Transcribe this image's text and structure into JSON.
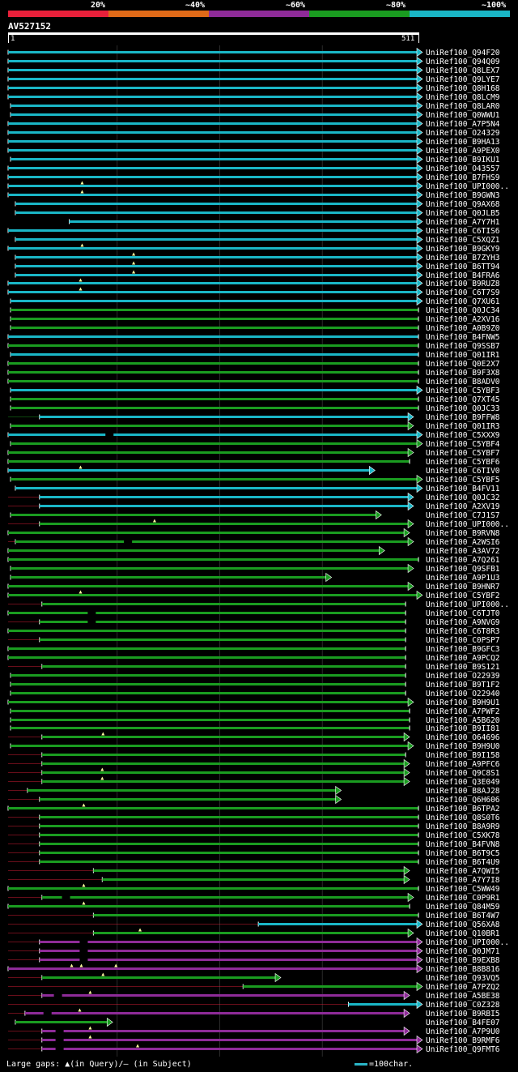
{
  "legend": {
    "labels": [
      "20%",
      "~40%",
      "~60%",
      "~80%",
      "~100%"
    ],
    "colors": [
      "#e8203a",
      "#e06a18",
      "#8e2b98",
      "#1a9c20",
      "#1ab6c6"
    ]
  },
  "query": {
    "name": "AV527152",
    "start": "1",
    "end": "511",
    "length": 511
  },
  "hits": [
    {
      "name": "UniRef100_Q94F20",
      "s": 1,
      "e": 511,
      "c": 4,
      "a": 1
    },
    {
      "name": "UniRef100_Q94Q09",
      "s": 1,
      "e": 511,
      "c": 4,
      "a": 1
    },
    {
      "name": "UniRef100_Q8LEX7",
      "s": 1,
      "e": 511,
      "c": 4,
      "a": 1
    },
    {
      "name": "UniRef100_Q9LYE7",
      "s": 1,
      "e": 511,
      "c": 4,
      "a": 1
    },
    {
      "name": "UniRef100_Q8H168",
      "s": 1,
      "e": 511,
      "c": 4,
      "a": 1
    },
    {
      "name": "UniRef100_Q8LCM9",
      "s": 1,
      "e": 511,
      "c": 4,
      "a": 1
    },
    {
      "name": "UniRef100_Q8LAR0",
      "s": 4,
      "e": 511,
      "c": 4,
      "a": 1
    },
    {
      "name": "UniRef100_Q0WWU1",
      "s": 4,
      "e": 511,
      "c": 4,
      "a": 1
    },
    {
      "name": "UniRef100_A7P5N4",
      "s": 1,
      "e": 511,
      "c": 4,
      "a": 1
    },
    {
      "name": "UniRef100_O24329",
      "s": 1,
      "e": 511,
      "c": 4,
      "a": 1
    },
    {
      "name": "UniRef100_B9HA13",
      "s": 1,
      "e": 511,
      "c": 4,
      "a": 1
    },
    {
      "name": "UniRef100_A9PEX0",
      "s": 1,
      "e": 511,
      "c": 4,
      "a": 1
    },
    {
      "name": "UniRef100_B9IKU1",
      "s": 4,
      "e": 511,
      "c": 4,
      "a": 1
    },
    {
      "name": "UniRef100_O43557",
      "s": 1,
      "e": 511,
      "c": 4,
      "a": 1
    },
    {
      "name": "UniRef100_B7FHS9",
      "s": 1,
      "e": 511,
      "c": 4,
      "a": 1
    },
    {
      "name": "UniRef100_UPI000..",
      "s": 1,
      "e": 511,
      "c": 4,
      "a": 1,
      "gq": [
        93
      ]
    },
    {
      "name": "UniRef100_B9GWN3",
      "s": 1,
      "e": 511,
      "c": 4,
      "a": 1,
      "gq": [
        93
      ]
    },
    {
      "name": "UniRef100_Q9AX68",
      "s": 10,
      "e": 511,
      "c": 4,
      "a": 1
    },
    {
      "name": "UniRef100_Q0JLB5",
      "s": 10,
      "e": 511,
      "c": 4,
      "a": 1
    },
    {
      "name": "UniRef100_A7Y7H1",
      "s": 77,
      "e": 511,
      "c": 4,
      "a": 1
    },
    {
      "name": "UniRef100_C6TIS6",
      "s": 1,
      "e": 511,
      "c": 4,
      "a": 1
    },
    {
      "name": "UniRef100_C5XQZ1",
      "s": 10,
      "e": 511,
      "c": 4,
      "a": 1
    },
    {
      "name": "UniRef100_B9GKY9",
      "s": 1,
      "e": 511,
      "c": 4,
      "a": 1,
      "gq": [
        93
      ]
    },
    {
      "name": "UniRef100_B7ZYH3",
      "s": 10,
      "e": 511,
      "c": 4,
      "a": 1,
      "gq": [
        157
      ]
    },
    {
      "name": "UniRef100_B6TT94",
      "s": 10,
      "e": 511,
      "c": 4,
      "a": 1,
      "gq": [
        157
      ]
    },
    {
      "name": "UniRef100_B4FRA6",
      "s": 10,
      "e": 511,
      "c": 4,
      "a": 1,
      "gq": [
        157
      ]
    },
    {
      "name": "UniRef100_B9RUZ8",
      "s": 1,
      "e": 511,
      "c": 4,
      "a": 1,
      "gq": [
        91
      ]
    },
    {
      "name": "UniRef100_C6T7S9",
      "s": 1,
      "e": 511,
      "c": 4,
      "a": 1,
      "gq": [
        91
      ]
    },
    {
      "name": "UniRef100_Q7XU61",
      "s": 4,
      "e": 511,
      "c": 4,
      "a": 1
    },
    {
      "name": "UniRef100_Q0JC34",
      "s": 4,
      "e": 511,
      "c": 3,
      "a": 0
    },
    {
      "name": "UniRef100_A2XV16",
      "s": 4,
      "e": 511,
      "c": 3,
      "a": 0
    },
    {
      "name": "UniRef100_A0B9Z0",
      "s": 4,
      "e": 511,
      "c": 3,
      "a": 0
    },
    {
      "name": "UniRef100_B4FNW5",
      "s": 1,
      "e": 511,
      "c": 4,
      "a": 0
    },
    {
      "name": "UniRef100_Q9SSB7",
      "s": 1,
      "e": 511,
      "c": 3,
      "a": 0
    },
    {
      "name": "UniRef100_Q01IR1",
      "s": 4,
      "e": 511,
      "c": 4,
      "a": 0
    },
    {
      "name": "UniRef100_Q0E2X7",
      "s": 1,
      "e": 511,
      "c": 3,
      "a": 0
    },
    {
      "name": "UniRef100_B9F3X8",
      "s": 1,
      "e": 511,
      "c": 3,
      "a": 0
    },
    {
      "name": "UniRef100_B8ADV0",
      "s": 1,
      "e": 511,
      "c": 3,
      "a": 0
    },
    {
      "name": "UniRef100_C5YBF3",
      "s": 4,
      "e": 511,
      "c": 4,
      "a": 1
    },
    {
      "name": "UniRef100_Q7XT45",
      "s": 4,
      "e": 511,
      "c": 3,
      "a": 0
    },
    {
      "name": "UniRef100_Q0JC33",
      "s": 4,
      "e": 511,
      "c": 3,
      "a": 0
    },
    {
      "name": "UniRef100_B9FFW8",
      "s": 40,
      "e": 500,
      "c": 4,
      "a": 1,
      "ps": 1,
      "pc": 3
    },
    {
      "name": "UniRef100_Q01IR3",
      "s": 4,
      "e": 500,
      "c": 3,
      "a": 1
    },
    {
      "name": "UniRef100_C5XXX9",
      "s": 1,
      "e": 511,
      "c": 4,
      "a": 1,
      "gs": [
        127
      ]
    },
    {
      "name": "UniRef100_C5YBF4",
      "s": 4,
      "e": 511,
      "c": 3,
      "a": 1
    },
    {
      "name": "UniRef100_C5YBF7",
      "s": 1,
      "e": 500,
      "c": 3,
      "a": 1
    },
    {
      "name": "UniRef100_C5YBF6",
      "s": 1,
      "e": 500,
      "c": 3,
      "a": 0
    },
    {
      "name": "UniRef100_C6TIV0",
      "s": 1,
      "e": 452,
      "c": 4,
      "a": 1,
      "gq": [
        91
      ]
    },
    {
      "name": "UniRef100_C5YBF5",
      "s": 4,
      "e": 511,
      "c": 3,
      "a": 1
    },
    {
      "name": "UniRef100_B4FV11",
      "s": 10,
      "e": 511,
      "c": 4,
      "a": 1
    },
    {
      "name": "UniRef100_Q0JC32",
      "s": 40,
      "e": 500,
      "c": 4,
      "a": 1,
      "ps": 1,
      "pc": 0
    },
    {
      "name": "UniRef100_A2XV19",
      "s": 40,
      "e": 500,
      "c": 4,
      "a": 1,
      "ps": 1,
      "pc": 0
    },
    {
      "name": "UniRef100_C7J1S7",
      "s": 4,
      "e": 460,
      "c": 3,
      "a": 1
    },
    {
      "name": "UniRef100_UPI000..",
      "s": 40,
      "e": 500,
      "c": 3,
      "a": 1,
      "gq": [
        183
      ],
      "ps": 1,
      "pc": 0
    },
    {
      "name": "UniRef100_B9RVN8",
      "s": 1,
      "e": 495,
      "c": 3,
      "a": 1
    },
    {
      "name": "UniRef100_A2WSI6",
      "s": 10,
      "e": 500,
      "c": 3,
      "a": 1,
      "ps": 1,
      "pc": 0,
      "gs": [
        150
      ]
    },
    {
      "name": "UniRef100_A3AV72",
      "s": 1,
      "e": 464,
      "c": 3,
      "a": 1
    },
    {
      "name": "UniRef100_A7Q261",
      "s": 1,
      "e": 511,
      "c": 3,
      "a": 0
    },
    {
      "name": "UniRef100_Q9SFB1",
      "s": 4,
      "e": 500,
      "c": 3,
      "a": 1
    },
    {
      "name": "UniRef100_A9P1U3",
      "s": 4,
      "e": 398,
      "c": 3,
      "a": 1
    },
    {
      "name": "UniRef100_B9HNR7",
      "s": 1,
      "e": 500,
      "c": 3,
      "a": 1
    },
    {
      "name": "UniRef100_C5YBF2",
      "s": 1,
      "e": 511,
      "c": 3,
      "a": 1,
      "gq": [
        91
      ]
    },
    {
      "name": "UniRef100_UPI000..",
      "s": 43,
      "e": 495,
      "c": 3,
      "a": 0,
      "ps": 1,
      "pc": 0
    },
    {
      "name": "UniRef100_C6TJT0",
      "s": 1,
      "e": 495,
      "c": 3,
      "a": 0,
      "gs": [
        105
      ]
    },
    {
      "name": "UniRef100_A9NVG9",
      "s": 40,
      "e": 495,
      "c": 3,
      "a": 0,
      "ps": 1,
      "pc": 0,
      "gs": [
        105
      ]
    },
    {
      "name": "UniRef100_C6T8R3",
      "s": 1,
      "e": 495,
      "c": 3,
      "a": 0
    },
    {
      "name": "UniRef100_C0PSP7",
      "s": 40,
      "e": 495,
      "c": 3,
      "a": 0,
      "ps": 1,
      "pc": 0
    },
    {
      "name": "UniRef100_B9GFC3",
      "s": 1,
      "e": 495,
      "c": 3,
      "a": 0
    },
    {
      "name": "UniRef100_A9PCQ2",
      "s": 1,
      "e": 495,
      "c": 3,
      "a": 0
    },
    {
      "name": "UniRef100_B9S121",
      "s": 43,
      "e": 495,
      "c": 3,
      "a": 0,
      "ps": 1,
      "pc": 0
    },
    {
      "name": "UniRef100_O22939",
      "s": 4,
      "e": 495,
      "c": 3,
      "a": 0
    },
    {
      "name": "UniRef100_B9T1F2",
      "s": 4,
      "e": 495,
      "c": 3,
      "a": 0
    },
    {
      "name": "UniRef100_O22940",
      "s": 4,
      "e": 495,
      "c": 3,
      "a": 0
    },
    {
      "name": "UniRef100_B9H9U1",
      "s": 1,
      "e": 500,
      "c": 3,
      "a": 1
    },
    {
      "name": "UniRef100_A7PWF2",
      "s": 4,
      "e": 500,
      "c": 3,
      "a": 0
    },
    {
      "name": "UniRef100_A5B620",
      "s": 4,
      "e": 500,
      "c": 3,
      "a": 0
    },
    {
      "name": "UniRef100_B9II81",
      "s": 4,
      "e": 500,
      "c": 3,
      "a": 0
    },
    {
      "name": "UniRef100_O64696",
      "s": 43,
      "e": 495,
      "c": 3,
      "a": 1,
      "gq": [
        119
      ],
      "ps": 1,
      "pc": 0
    },
    {
      "name": "UniRef100_B9H9U0",
      "s": 4,
      "e": 500,
      "c": 3,
      "a": 1
    },
    {
      "name": "UniRef100_B9I158",
      "s": 43,
      "e": 495,
      "c": 3,
      "a": 0,
      "ps": 1,
      "pc": 0
    },
    {
      "name": "UniRef100_A9PFC6",
      "s": 43,
      "e": 495,
      "c": 3,
      "a": 1,
      "ps": 1,
      "pc": 0
    },
    {
      "name": "UniRef100_Q9C8S1",
      "s": 43,
      "e": 495,
      "c": 3,
      "a": 1,
      "gq": [
        118
      ],
      "ps": 1,
      "pc": 0
    },
    {
      "name": "UniRef100_Q3E049",
      "s": 43,
      "e": 495,
      "c": 3,
      "a": 1,
      "gq": [
        118
      ],
      "ps": 1,
      "pc": 0
    },
    {
      "name": "UniRef100_B8AJ28",
      "s": 25,
      "e": 410,
      "c": 3,
      "a": 1,
      "ps": 1,
      "pc": 0
    },
    {
      "name": "UniRef100_Q6H606",
      "s": 40,
      "e": 410,
      "c": 3,
      "a": 1,
      "ps": 1,
      "pc": 0
    },
    {
      "name": "UniRef100_B6TPA2",
      "s": 1,
      "e": 511,
      "c": 3,
      "a": 0,
      "gq": [
        95
      ]
    },
    {
      "name": "UniRef100_Q8S0T6",
      "s": 40,
      "e": 511,
      "c": 3,
      "a": 0,
      "ps": 1,
      "pc": 0
    },
    {
      "name": "UniRef100_B8A9R9",
      "s": 40,
      "e": 511,
      "c": 3,
      "a": 0,
      "ps": 1,
      "pc": 0
    },
    {
      "name": "UniRef100_C5XK78",
      "s": 40,
      "e": 511,
      "c": 3,
      "a": 0,
      "ps": 1,
      "pc": 0
    },
    {
      "name": "UniRef100_B4FVN8",
      "s": 40,
      "e": 511,
      "c": 3,
      "a": 0,
      "ps": 1,
      "pc": 0
    },
    {
      "name": "UniRef100_B6T9C5",
      "s": 40,
      "e": 511,
      "c": 3,
      "a": 0,
      "ps": 1,
      "pc": 0
    },
    {
      "name": "UniRef100_B6T4U9",
      "s": 40,
      "e": 511,
      "c": 3,
      "a": 0,
      "ps": 1,
      "pc": 0
    },
    {
      "name": "UniRef100_A7QWI5",
      "s": 107,
      "e": 495,
      "c": 3,
      "a": 1,
      "ps": 1,
      "pc": 0
    },
    {
      "name": "UniRef100_A7Y7I8",
      "s": 118,
      "e": 495,
      "c": 3,
      "a": 1,
      "ps": 1,
      "pc": 0
    },
    {
      "name": "UniRef100_C5WW49",
      "s": 1,
      "e": 511,
      "c": 3,
      "a": 0,
      "gq": [
        95
      ]
    },
    {
      "name": "UniRef100_C0P9R1",
      "s": 43,
      "e": 500,
      "c": 3,
      "a": 1,
      "gs": [
        73
      ],
      "ps": 1,
      "pc": 0
    },
    {
      "name": "UniRef100_Q84M59",
      "s": 1,
      "e": 500,
      "c": 3,
      "a": 0,
      "gq": [
        95
      ]
    },
    {
      "name": "UniRef100_B6T4W7",
      "s": 107,
      "e": 511,
      "c": 3,
      "a": 0,
      "ps": 1,
      "pc": 0
    },
    {
      "name": "UniRef100_Q56XA8",
      "s": 312,
      "e": 511,
      "c": 4,
      "a": 1,
      "ps": 1,
      "pc": 0
    },
    {
      "name": "UniRef100_Q10BR1",
      "s": 107,
      "e": 500,
      "c": 3,
      "a": 1,
      "gq": [
        165
      ],
      "ps": 1,
      "pc": 0
    },
    {
      "name": "UniRef100_UPI000..",
      "s": 40,
      "e": 511,
      "c": 2,
      "a": 1,
      "gs": [
        95
      ],
      "ps": 1,
      "pc": 0
    },
    {
      "name": "UniRef100_Q0JM71",
      "s": 40,
      "e": 511,
      "c": 2,
      "a": 1,
      "gs": [
        95
      ],
      "ps": 1,
      "pc": 0
    },
    {
      "name": "UniRef100_B9EXB8",
      "s": 40,
      "e": 511,
      "c": 2,
      "a": 1,
      "gs": [
        95
      ],
      "ps": 1,
      "pc": 0
    },
    {
      "name": "UniRef100_B8B816",
      "s": 1,
      "e": 511,
      "c": 2,
      "a": 1,
      "gq": [
        80,
        92,
        135
      ]
    },
    {
      "name": "UniRef100_Q93VQ5",
      "s": 43,
      "e": 335,
      "c": 3,
      "a": 1,
      "gq": [
        119
      ],
      "ps": 1,
      "pc": 0
    },
    {
      "name": "UniRef100_A7PZQ2",
      "s": 293,
      "e": 511,
      "c": 3,
      "a": 1,
      "ps": 1,
      "pc": 0
    },
    {
      "name": "UniRef100_A5BE38",
      "s": 43,
      "e": 495,
      "c": 2,
      "a": 1,
      "gq": [
        103
      ],
      "gs": [
        63
      ],
      "ps": 1,
      "pc": 0
    },
    {
      "name": "UniRef100_C0Z328",
      "s": 424,
      "e": 511,
      "c": 4,
      "a": 1,
      "ps": 1,
      "pc": 0
    },
    {
      "name": "UniRef100_B9RBI5",
      "s": 22,
      "e": 495,
      "c": 2,
      "a": 1,
      "gq": [
        90
      ],
      "gs": [
        50
      ],
      "ps": 1,
      "pc": 0
    },
    {
      "name": "UniRef100_B4FE07",
      "s": 10,
      "e": 126,
      "c": 3,
      "a": 1
    },
    {
      "name": "UniRef100_A7P9U0",
      "s": 43,
      "e": 495,
      "c": 2,
      "a": 1,
      "gq": [
        103
      ],
      "gs": [
        65
      ],
      "ps": 1,
      "pc": 0
    },
    {
      "name": "UniRef100_B9RMF6",
      "s": 43,
      "e": 511,
      "c": 2,
      "a": 1,
      "gq": [
        103
      ],
      "gs": [
        65
      ],
      "ps": 1,
      "pc": 0
    },
    {
      "name": "UniRef100_Q9FMT6",
      "s": 43,
      "e": 511,
      "c": 2,
      "a": 1,
      "gq": [
        162
      ],
      "gs": [
        65
      ],
      "ps": 1,
      "pc": 0
    }
  ],
  "footer": {
    "left_text": "Large gaps: ▲(in Query)/– (in Subject)",
    "scale_text": "=100char."
  }
}
